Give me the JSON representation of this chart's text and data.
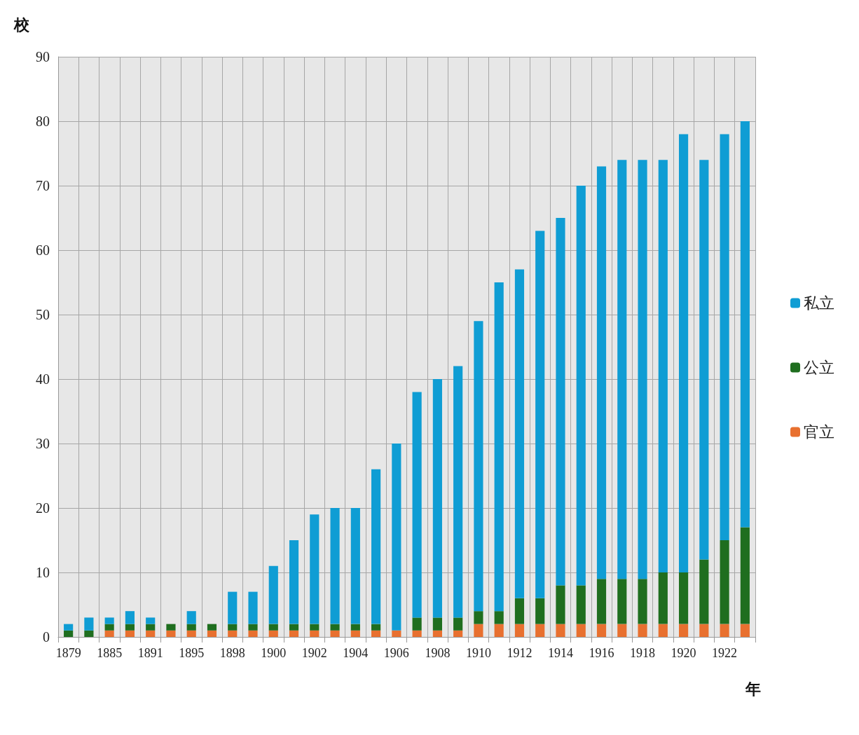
{
  "chart_data": {
    "type": "bar",
    "stacked": true,
    "ylabel": "校",
    "xlabel": "年",
    "categories": [
      "1879",
      null,
      "1885",
      null,
      "1891",
      null,
      "1895",
      null,
      "1898",
      null,
      "1900",
      null,
      "1902",
      null,
      "1904",
      null,
      "1906",
      null,
      "1908",
      null,
      "1910",
      null,
      "1912",
      null,
      "1914",
      null,
      "1916",
      null,
      "1918",
      null,
      "1920",
      null,
      "1922",
      null
    ],
    "series": [
      {
        "name": "官立",
        "color": "#e8702f",
        "values": [
          0,
          0,
          1,
          1,
          1,
          1,
          1,
          1,
          1,
          1,
          1,
          1,
          1,
          1,
          1,
          1,
          1,
          1,
          1,
          1,
          2,
          2,
          2,
          2,
          2,
          2,
          2,
          2,
          2,
          2,
          2,
          2,
          2,
          2
        ]
      },
      {
        "name": "公立",
        "color": "#1f6e1f",
        "values": [
          1,
          1,
          1,
          1,
          1,
          1,
          1,
          1,
          1,
          1,
          1,
          1,
          1,
          1,
          1,
          1,
          0,
          2,
          2,
          2,
          2,
          2,
          4,
          4,
          6,
          6,
          7,
          7,
          7,
          8,
          8,
          10,
          13,
          15
        ]
      },
      {
        "name": "私立",
        "color": "#0f9dd4",
        "values": [
          1,
          2,
          1,
          2,
          1,
          0,
          2,
          0,
          5,
          5,
          9,
          13,
          17,
          18,
          18,
          24,
          29,
          35,
          37,
          39,
          45,
          51,
          51,
          57,
          57,
          62,
          64,
          65,
          65,
          64,
          68,
          62,
          63,
          63
        ]
      }
    ],
    "ylim": [
      0,
      90
    ],
    "yticks": [
      0,
      10,
      20,
      30,
      40,
      50,
      60,
      70,
      80,
      90
    ],
    "grid": true,
    "legend": "right"
  }
}
